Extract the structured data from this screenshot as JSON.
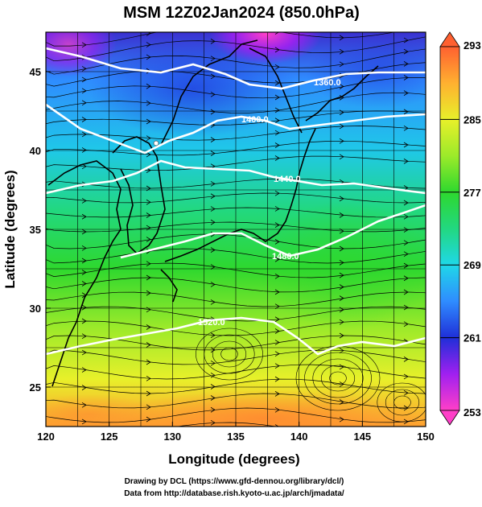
{
  "title": "MSM 12Z02Jan2024 (850.0hPa)",
  "x_label": "Longitude (degrees)",
  "y_label": "Latitude  (degrees)",
  "x_ticks": [
    "120",
    "125",
    "130",
    "135",
    "140",
    "145",
    "150"
  ],
  "y_ticks": [
    "25",
    "30",
    "35",
    "40",
    "45"
  ],
  "colorbar_ticks": [
    "293",
    "285",
    "277",
    "269",
    "261",
    "253"
  ],
  "contour_labels": [
    "1360.0",
    "1400.0",
    "1440.0",
    "1480.0",
    "1520.0"
  ],
  "footer": {
    "line1": "Drawing by DCL (https://www.gfd-dennou.org/library/dcl/)",
    "line2": "Data from http://database.rish.kyoto-u.ac.jp/arch/jmadata/"
  },
  "map": {
    "lon_range": [
      120,
      150
    ],
    "lat_range": [
      22.5,
      47.5
    ],
    "colorbar_range": [
      253,
      293
    ],
    "colors": {
      "t253": "#ff3fc8",
      "t257": "#a020f0",
      "t261": "#1f2fd8",
      "t265": "#2f8cff",
      "t269": "#1fd8e8",
      "t273": "#22d880",
      "t277": "#2ed82e",
      "t281": "#9cea2a",
      "t285": "#e8f02a",
      "t289": "#ffb030",
      "t293": "#ff6030"
    }
  }
}
